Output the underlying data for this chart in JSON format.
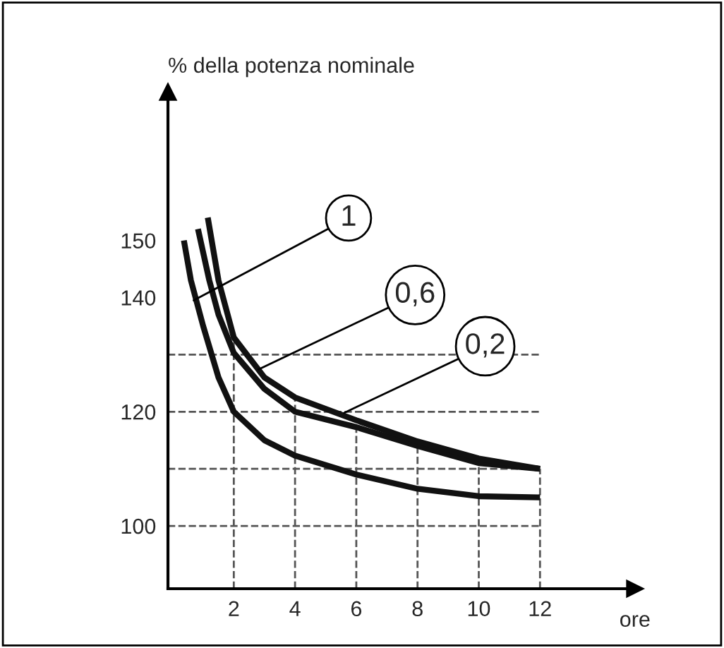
{
  "chart_data": {
    "type": "line",
    "ylabel": "% della potenza nominale",
    "xlabel": "ore",
    "xlim": [
      -0.15,
      15.1
    ],
    "ylim": [
      89,
      176
    ],
    "xticks": [
      2,
      4,
      6,
      8,
      10,
      12
    ],
    "yticks": [
      100,
      120,
      140,
      150
    ],
    "line_style": "solid",
    "marker": "none",
    "series": [
      {
        "color": "#111111",
        "x": [
          0.37,
          0.6,
          1,
          1.5,
          2,
          3,
          4,
          6,
          8,
          10,
          12
        ],
        "values": [
          150,
          143,
          135,
          126,
          120,
          115,
          112.3,
          109,
          106.5,
          105.2,
          105
        ]
      },
      {
        "color": "#111111",
        "x": [
          0.83,
          1.2,
          1.5,
          2,
          3,
          4,
          6,
          8,
          10,
          12
        ],
        "values": [
          152,
          143,
          137,
          130.3,
          124,
          120,
          117.3,
          114,
          111,
          110
        ]
      },
      {
        "color": "#111111",
        "x": [
          1.15,
          1.5,
          2,
          3,
          4,
          6,
          8,
          10,
          12
        ],
        "values": [
          154,
          143,
          133,
          126,
          122.5,
          118.5,
          114.8,
          111.8,
          110
        ]
      }
    ],
    "ref_lines": [
      {
        "axis": "y",
        "value": 100,
        "line_style": "dashed",
        "color": "#555555"
      },
      {
        "axis": "y",
        "value": 110,
        "line_style": "dashed",
        "color": "#555555"
      },
      {
        "axis": "y",
        "value": 120,
        "line_style": "dashed",
        "color": "#555555"
      },
      {
        "axis": "y",
        "value": 130,
        "line_style": "dashed",
        "color": "#555555"
      },
      {
        "axis": "x",
        "value": 2,
        "line_style": "dashed",
        "color": "#555555"
      },
      {
        "axis": "x",
        "value": 4,
        "line_style": "dashed",
        "color": "#555555"
      },
      {
        "axis": "x",
        "value": 6,
        "line_style": "dashed",
        "color": "#555555"
      },
      {
        "axis": "x",
        "value": 8,
        "line_style": "dashed",
        "color": "#555555"
      },
      {
        "axis": "x",
        "value": 10,
        "line_style": "dashed",
        "color": "#555555"
      },
      {
        "axis": "x",
        "value": 12,
        "line_style": "dashed",
        "color": "#555555"
      }
    ],
    "annotations": [
      {
        "text": "1",
        "x": 0.69,
        "y": 139.5
      },
      {
        "text": "0,6",
        "x": 2.8,
        "y": 127.4
      },
      {
        "text": "0,2",
        "x": 5.6,
        "y": 119.8
      }
    ],
    "grid": false,
    "legend": false
  }
}
